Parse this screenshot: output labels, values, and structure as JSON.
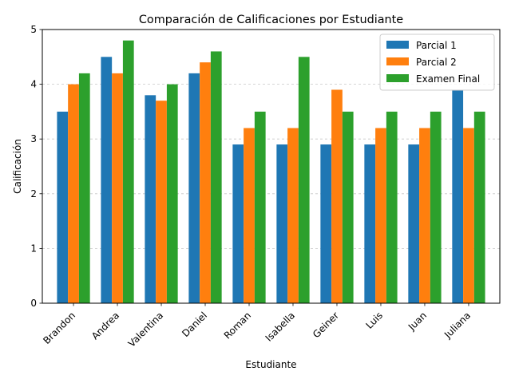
{
  "chart_data": {
    "type": "bar",
    "title": "Comparación de Calificaciones por Estudiante",
    "xlabel": "Estudiante",
    "ylabel": "Calificación",
    "ylim": [
      0,
      5
    ],
    "yticks": [
      "0",
      "1",
      "2",
      "3",
      "4",
      "5"
    ],
    "grid": "horizontal dashed",
    "legend_position": "top-right",
    "categories": [
      "Brandon",
      "Andrea",
      "Valentina",
      "Daniel",
      "Roman",
      "Isabella",
      "Geiner",
      "Luis",
      "Juan",
      "Juliana"
    ],
    "series": [
      {
        "name": "Parcial 1",
        "color": "#1f77b4",
        "values": [
          3.5,
          4.5,
          3.8,
          4.2,
          2.9,
          2.9,
          2.9,
          2.9,
          2.9,
          3.9
        ]
      },
      {
        "name": "Parcial 2",
        "color": "#ff7f0e",
        "values": [
          4.0,
          4.2,
          3.7,
          4.4,
          3.2,
          3.2,
          3.9,
          3.2,
          3.2,
          3.2
        ]
      },
      {
        "name": "Examen Final",
        "color": "#2ca02c",
        "values": [
          4.2,
          4.8,
          4.0,
          4.6,
          3.5,
          4.5,
          3.5,
          3.5,
          3.5,
          3.5
        ]
      }
    ]
  }
}
